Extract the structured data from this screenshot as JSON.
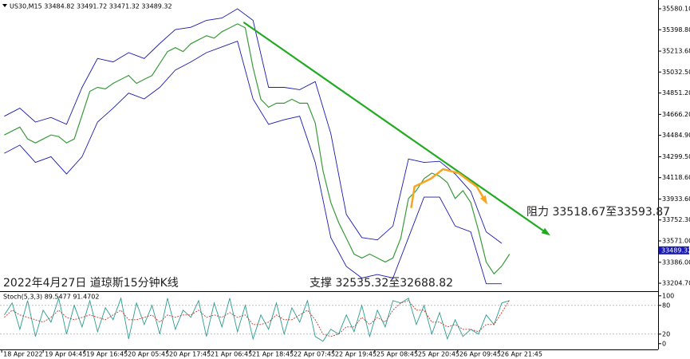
{
  "chart_data": [
    {
      "type": "line",
      "title": "US30,M15  33484.82 33491.72 33471.32 33489.32",
      "annotations": [
        "2022年4月27日 道琼斯15分钟K线",
        "支撑 32535.32至32688.82",
        "阻力 33518.67至33593.87"
      ],
      "last_price": 33489.32,
      "xlim": [
        -2,
        760
      ],
      "ylim": [
        33136,
        35656
      ],
      "yticks": [
        {
          "value": 35580.1,
          "label": "35580.10"
        },
        {
          "value": 35398.8,
          "label": "35398.80"
        },
        35213.68,
        {
          "value": 35032.5,
          "label": "35032.50"
        },
        {
          "value": 34851.2,
          "label": "34851.20"
        },
        {
          "value": 34666.2,
          "label": "34666.20"
        },
        {
          "value": 34484.9,
          "label": "34484.90"
        },
        {
          "value": 34299.5,
          "label": "34299.50"
        },
        {
          "value": 34118.6,
          "label": "34118.60"
        },
        {
          "value": 33933.6,
          "label": "33933.60"
        },
        {
          "value": 33752.3,
          "label": "33752.30"
        },
        {
          "value": 33571.0,
          "label": "33571.00"
        },
        {
          "value": 33386.0,
          "label": "33386.00"
        },
        {
          "value": 33204.7,
          "label": "33204.70"
        }
      ],
      "series": [
        {
          "color": "#3a9a3a",
          "width": 1.2,
          "x": [
            3,
            12,
            21,
            30,
            39,
            48,
            57,
            66,
            75,
            84,
            93,
            102,
            111,
            120,
            129,
            138,
            147,
            156,
            165,
            174,
            183,
            192,
            201,
            210,
            219,
            228,
            237,
            246,
            255,
            264,
            273,
            282,
            291,
            300,
            309,
            318,
            327,
            336,
            345,
            354,
            363,
            372,
            381,
            390,
            399,
            408,
            417,
            426,
            435,
            444,
            453,
            462,
            471,
            480,
            489,
            498,
            507,
            516,
            525,
            534,
            543,
            552,
            561,
            570,
            579,
            588
          ],
          "values": [
            34487.8,
            34522.1,
            34556.5,
            34453.4,
            34419.1,
            34453.4,
            34487.8,
            34474.1,
            34419.1,
            34453.4,
            34659.5,
            34865.6,
            34900.0,
            34886.3,
            34934.3,
            34968.7,
            35003.0,
            34934.3,
            34968.7,
            35003.0,
            35106.1,
            35209.1,
            35243.5,
            35209.1,
            35277.8,
            35312.2,
            35346.5,
            35325.9,
            35380.9,
            35415.2,
            35449.6,
            35415.2,
            35071.7,
            34796.9,
            34728.2,
            34762.6,
            34762.6,
            34796.9,
            34762.6,
            34762.6,
            34590.8,
            34178.6,
            33903.8,
            33732.1,
            33594.7,
            33457.3,
            33422.9,
            33457.3,
            33422.9,
            33388.6,
            33422.9,
            33594.7,
            33938.2,
            34006.9,
            34109.9,
            34158.0,
            34130.6,
            34075.6,
            33938.2,
            34006.9,
            33903.8,
            33663.4,
            33388.6,
            33285.5,
            33354.2,
            33457.3
          ]
        },
        {
          "color": "#1a1ab0",
          "width": 0.9,
          "x": [
            3,
            21,
            39,
            57,
            75,
            93,
            111,
            129,
            147,
            165,
            183,
            201,
            219,
            237,
            255,
            273,
            291,
            309,
            327,
            345,
            363,
            381,
            399,
            417,
            435,
            453,
            471,
            489,
            507,
            525,
            543,
            561,
            579
          ],
          "values": [
            34650,
            34720,
            34600,
            34640,
            34580,
            34900,
            35150,
            35120,
            35200,
            35150,
            35280,
            35400,
            35420,
            35480,
            35500,
            35580,
            35480,
            34900,
            34900,
            34880,
            34950,
            34500,
            33800,
            33600,
            33580,
            33700,
            34280,
            34250,
            34260,
            34150,
            34000,
            33650,
            33550
          ]
        },
        {
          "color": "#1a1ab0",
          "width": 0.9,
          "x": [
            3,
            21,
            39,
            57,
            75,
            93,
            111,
            129,
            147,
            165,
            183,
            201,
            219,
            237,
            255,
            273,
            291,
            309,
            327,
            345,
            363,
            381,
            399,
            417,
            435,
            453,
            471,
            489,
            507,
            525,
            543,
            561,
            579
          ],
          "values": [
            34330,
            34400,
            34250,
            34300,
            34150,
            34300,
            34600,
            34720,
            34850,
            34800,
            34900,
            35050,
            35120,
            35200,
            35250,
            35300,
            34800,
            34580,
            34620,
            34650,
            34250,
            33600,
            33350,
            33250,
            33280,
            33250,
            33600,
            33950,
            33950,
            33700,
            33650,
            33200,
            33200
          ]
        },
        {
          "color": "#22aa22",
          "width": 2.2,
          "arrow": true,
          "x": [
            280,
            633
          ],
          "values": [
            35463.3,
            33629.0
          ]
        },
        {
          "color": "#f5a623",
          "width": 2.5,
          "arrow": true,
          "x": [
            474,
            478,
            497,
            511,
            529,
            550,
            561
          ],
          "values": [
            33855.8,
            34041.2,
            34110.0,
            34192.4,
            34158.0,
            34041.2,
            33903.8
          ]
        }
      ]
    },
    {
      "type": "line",
      "title": "Stoch(5,3,3) 89.5477 91.4702",
      "xlim": [
        -2,
        760
      ],
      "ylim": [
        -12,
        108
      ],
      "yticks": [
        100,
        80,
        20,
        0
      ],
      "xticks": [
        {
          "value": 0,
          "label": "18 Apr 2022"
        },
        {
          "value": 48,
          "label": "19 Apr 04:45"
        },
        {
          "value": 96,
          "label": "19 Apr 16:45"
        },
        {
          "value": 144,
          "label": "20 Apr 05:45"
        },
        {
          "value": 192,
          "label": "20 Apr 17:45"
        },
        {
          "value": 240,
          "label": "21 Apr 06:45"
        },
        {
          "value": 288,
          "label": "21 Apr 18:45"
        },
        {
          "value": 336,
          "label": "22 Apr 07:45"
        },
        {
          "value": 384,
          "label": "22 Apr 19:45"
        },
        {
          "value": 432,
          "label": "25 Apr 08:45"
        },
        {
          "value": 480,
          "label": "25 Apr 20:45"
        },
        {
          "value": 528,
          "label": "26 Apr 09:45"
        },
        {
          "value": 576,
          "label": "26 Apr 21:45"
        }
      ],
      "series": [
        {
          "color": "#2a9d8f",
          "width": 0.9,
          "x": [
            3,
            12,
            21,
            30,
            39,
            48,
            57,
            66,
            75,
            84,
            93,
            102,
            111,
            120,
            129,
            138,
            147,
            156,
            165,
            174,
            183,
            192,
            201,
            210,
            219,
            228,
            237,
            246,
            255,
            264,
            273,
            282,
            291,
            300,
            309,
            318,
            327,
            336,
            345,
            354,
            363,
            372,
            381,
            390,
            399,
            408,
            417,
            426,
            435,
            444,
            453,
            462,
            471,
            480,
            489,
            498,
            507,
            516,
            525,
            534,
            543,
            552,
            561,
            570,
            579,
            588
          ],
          "values": [
            60,
            85,
            30,
            90,
            15,
            70,
            45,
            95,
            20,
            80,
            35,
            90,
            25,
            75,
            50,
            95,
            10,
            85,
            40,
            80,
            20,
            95,
            30,
            70,
            55,
            90,
            15,
            85,
            35,
            95,
            25,
            80,
            10,
            60,
            30,
            85,
            20,
            75,
            45,
            90,
            15,
            5,
            30,
            20,
            60,
            25,
            80,
            15,
            70,
            35,
            90,
            85,
            95,
            40,
            80,
            20,
            65,
            10,
            50,
            15,
            30,
            20,
            60,
            40,
            85,
            90
          ]
        },
        {
          "color": "#c0392b",
          "width": 0.9,
          "dashed": true,
          "x": [
            3,
            12,
            21,
            30,
            39,
            48,
            57,
            66,
            75,
            84,
            93,
            102,
            111,
            120,
            129,
            138,
            147,
            156,
            165,
            174,
            183,
            192,
            201,
            210,
            219,
            228,
            237,
            246,
            255,
            264,
            273,
            282,
            291,
            300,
            309,
            318,
            327,
            336,
            345,
            354,
            363,
            372,
            381,
            390,
            399,
            408,
            417,
            426,
            435,
            444,
            453,
            462,
            471,
            480,
            489,
            498,
            507,
            516,
            525,
            534,
            543,
            552,
            561,
            570,
            579,
            588
          ],
          "values": [
            55,
            70,
            60,
            55,
            50,
            45,
            55,
            70,
            55,
            50,
            55,
            60,
            55,
            50,
            60,
            70,
            50,
            50,
            55,
            60,
            45,
            60,
            55,
            60,
            60,
            70,
            55,
            60,
            55,
            65,
            55,
            60,
            40,
            40,
            45,
            60,
            50,
            50,
            60,
            70,
            50,
            20,
            15,
            20,
            35,
            35,
            55,
            40,
            55,
            45,
            70,
            85,
            90,
            70,
            70,
            45,
            45,
            35,
            40,
            30,
            30,
            25,
            40,
            40,
            65,
            91.47
          ]
        }
      ]
    }
  ]
}
